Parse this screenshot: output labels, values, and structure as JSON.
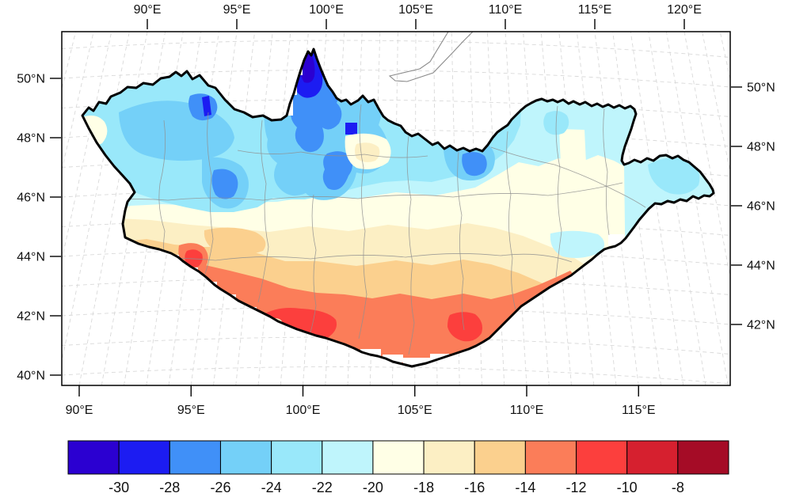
{
  "figure": {
    "kind": "filled-contour map with colorbar",
    "region": "Mongolia",
    "background": "#ffffff",
    "border_style": "thick black national outline, thin gray province borders, light gray dashed 1-degree graticule",
    "extra_feature": "lake outline crossing top edge near 103°E"
  },
  "axes": {
    "top_ticks": [
      {
        "lon": 90,
        "label": "90°E"
      },
      {
        "lon": 95,
        "label": "95°E"
      },
      {
        "lon": 100,
        "label": "100°E"
      },
      {
        "lon": 105,
        "label": "105°E"
      },
      {
        "lon": 110,
        "label": "110°E"
      },
      {
        "lon": 115,
        "label": "115°E"
      },
      {
        "lon": 120,
        "label": "120°E"
      }
    ],
    "bottom_ticks": [
      {
        "lon": 90,
        "label": "90°E"
      },
      {
        "lon": 95,
        "label": "95°E"
      },
      {
        "lon": 100,
        "label": "100°E"
      },
      {
        "lon": 105,
        "label": "105°E"
      },
      {
        "lon": 110,
        "label": "110°E"
      },
      {
        "lon": 115,
        "label": "115°E"
      }
    ],
    "left_ticks": [
      {
        "lat": 50,
        "label": "50°N"
      },
      {
        "lat": 48,
        "label": "48°N"
      },
      {
        "lat": 46,
        "label": "46°N"
      },
      {
        "lat": 44,
        "label": "44°N"
      },
      {
        "lat": 42,
        "label": "42°N"
      },
      {
        "lat": 40,
        "label": "40°N"
      }
    ],
    "right_ticks": [
      {
        "lat": 50,
        "label": "50°N"
      },
      {
        "lat": 48,
        "label": "48°N"
      },
      {
        "lat": 46,
        "label": "46°N"
      },
      {
        "lat": 44,
        "label": "44°N"
      },
      {
        "lat": 42,
        "label": "42°N"
      }
    ]
  },
  "colorbar": {
    "cell_colors": [
      "#2b00d1",
      "#1c1cf2",
      "#4090f8",
      "#74d0f8",
      "#99e8fa",
      "#bff5fc",
      "#ffffe6",
      "#fcefc4",
      "#fbd08e",
      "#fb7d59",
      "#fc3f3d",
      "#d6202f",
      "#a50c26"
    ],
    "tick_labels": [
      "-30",
      "-28",
      "-26",
      "-24",
      "-22",
      "-20",
      "-18",
      "-16",
      "-14",
      "-12",
      "-10",
      "-8"
    ],
    "tick_values": [
      -30,
      -28,
      -26,
      -24,
      -22,
      -20,
      -18,
      -16,
      -14,
      -12,
      -10,
      -8
    ]
  },
  "chart_data": {
    "type": "heatmap",
    "title": "",
    "colorbar_tick_values": [
      -30,
      -28,
      -26,
      -24,
      -22,
      -20,
      -18,
      -16,
      -14,
      -12,
      -10,
      -8
    ],
    "spatial_pattern": [
      {
        "area": "northern hump near 100°E, 50.5-51.5°N",
        "band": "below -30 to -28"
      },
      {
        "area": "northwest pocket near 93°E, 49.5°N",
        "band": "-30 to -26"
      },
      {
        "area": "north-central highlands",
        "band": "-26 to -22"
      },
      {
        "area": "broad central belt",
        "band": "-22 to -18"
      },
      {
        "area": "eastern wing near 118-120°E, 46-47°N",
        "band": "-24 to -20"
      },
      {
        "area": "south-central belt",
        "band": "-18 to -14"
      },
      {
        "area": "southern Gobi strip",
        "band": "-14 to -12"
      },
      {
        "area": "hotspots near 100°E and 107°E at 42°N",
        "band": "-12 to -10"
      }
    ]
  }
}
